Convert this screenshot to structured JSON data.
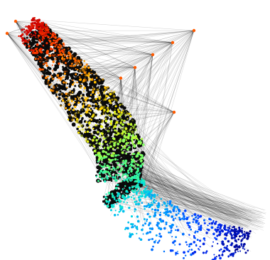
{
  "figure": {
    "background_color": "#ffffff",
    "edge_color": "#000000",
    "colormap": [
      "#cc0000",
      "#ff4000",
      "#ff9900",
      "#ffdd00",
      "#b8ff3a",
      "#4dff8a",
      "#00e0e0",
      "#0090ff",
      "#0030ff",
      "#000088"
    ],
    "hub_nodes_color": "#ff5a00"
  }
}
